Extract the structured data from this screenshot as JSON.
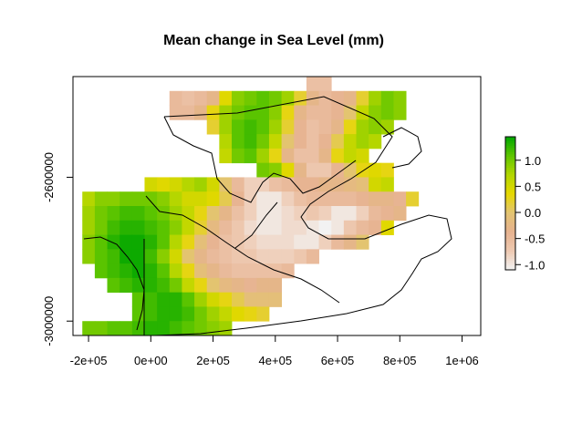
{
  "chart_data": {
    "type": "heatmap",
    "title": "Mean change in Sea Level (mm)",
    "xlabel": "",
    "ylabel": "",
    "x_ticks": [
      "-2e+05",
      "0e+00",
      "2e+05",
      "4e+05",
      "6e+05",
      "8e+05",
      "1e+06"
    ],
    "x_tick_values": [
      -200000,
      0,
      200000,
      400000,
      600000,
      800000,
      1000000
    ],
    "y_ticks": [
      "-2600000",
      "-3000000"
    ],
    "y_tick_values": [
      -2600000,
      -3000000
    ],
    "xlim": [
      -250000,
      1060000
    ],
    "ylim": [
      -3040000,
      -2320000
    ],
    "colorbar": {
      "ticks": [
        "1.0",
        "0.5",
        "0.0",
        "-0.5",
        "-1.0"
      ],
      "tick_values": [
        1.0,
        0.5,
        0.0,
        -0.5,
        -1.0
      ],
      "range": [
        -1.1,
        1.45
      ],
      "colors": [
        "#f2f2f2",
        "#eec9b1",
        "#e6b28f",
        "#e3c472",
        "#e6d800",
        "#b2d600",
        "#5ec500",
        "#00a600"
      ]
    },
    "grid": false,
    "legend": "right",
    "grid_resolution": 40000,
    "rows": [
      {
        "y": -2340000,
        "x_start": 520000,
        "values": [
          -0.6,
          -0.6
        ]
      },
      {
        "y": -2380000,
        "x_start": 80000,
        "values": [
          -0.5,
          -0.6,
          -0.5,
          -0.3,
          0.4,
          0.9,
          1.0,
          1.1,
          1.0,
          0.8,
          0.2,
          -0.3,
          -0.5,
          -0.4,
          -0.3,
          0.2,
          0.8,
          1.0,
          0.9
        ]
      },
      {
        "y": -2420000,
        "x_start": 80000,
        "values": [
          -0.5,
          -0.5,
          -0.3,
          0.3,
          0.8,
          1.0,
          1.1,
          1.1,
          0.9,
          0.3,
          -0.3,
          -0.5,
          -0.5,
          -0.4,
          0.0,
          0.6,
          0.9,
          1.0,
          0.9
        ]
      },
      {
        "y": -2460000,
        "x_start": 200000,
        "values": [
          0.2,
          0.8,
          1.1,
          1.2,
          1.1,
          0.8,
          0.2,
          -0.4,
          -0.6,
          -0.5,
          -0.3,
          0.3,
          0.8,
          0.9,
          0.8
        ]
      },
      {
        "y": -2500000,
        "x_start": 240000,
        "values": [
          0.7,
          1.1,
          1.2,
          1.0,
          0.6,
          0.0,
          -0.4,
          -0.6,
          -0.4,
          0.1,
          0.6,
          0.8,
          0.7
        ]
      },
      {
        "y": -2540000,
        "x_start": 240000,
        "values": [
          0.6,
          1.0,
          1.1,
          0.8,
          0.3,
          -0.3,
          -0.6,
          -0.6,
          -0.3,
          0.3,
          0.6,
          0.5
        ]
      },
      {
        "y": -2580000,
        "x_start": 360000,
        "values": [
          1.0,
          0.9,
          0.4,
          -0.3,
          -0.7,
          -0.7,
          -0.4,
          0.0,
          0.3,
          0.4,
          0.3
        ]
      },
      {
        "y": -2620000,
        "x_start": 0,
        "values": [
          0.5,
          0.4,
          0.5,
          0.7,
          0.8,
          0.5,
          0.0,
          -0.5,
          -0.8,
          -0.8,
          -0.6,
          -0.5,
          -0.4,
          -0.4,
          -0.3,
          -0.3,
          -0.2,
          -0.1,
          0.5,
          0.6
        ]
      },
      {
        "y": -2660000,
        "x_start": -200000,
        "values": [
          0.7,
          0.9,
          0.9,
          1.0,
          1.0,
          1.0,
          0.9,
          0.7,
          0.5,
          0.5,
          0.4,
          0.1,
          -0.4,
          -0.8,
          -1.0,
          -1.0,
          -0.8,
          -0.6,
          -0.5,
          -0.5,
          -0.5,
          -0.5,
          -0.4,
          -0.3,
          -0.3,
          -0.4,
          0.2
        ]
      },
      {
        "y": -2700000,
        "x_start": -200000,
        "values": [
          0.8,
          1.0,
          1.1,
          1.2,
          1.2,
          1.1,
          1.0,
          0.8,
          0.6,
          0.3,
          0.0,
          -0.3,
          -0.6,
          -0.8,
          -1.0,
          -1.0,
          -0.9,
          -0.8,
          -0.7,
          -0.8,
          -1.0,
          -1.0,
          -0.8,
          -0.5,
          -0.4,
          -0.3
        ]
      },
      {
        "y": -2740000,
        "x_start": -200000,
        "values": [
          0.8,
          1.0,
          1.2,
          1.3,
          1.3,
          1.2,
          1.1,
          0.9,
          0.6,
          0.2,
          -0.2,
          -0.5,
          -0.7,
          -0.9,
          -1.0,
          -1.0,
          -0.9,
          -0.9,
          -1.0,
          -1.1,
          -1.0,
          -0.7,
          -0.5,
          -0.4,
          0.4
        ]
      },
      {
        "y": -2780000,
        "x_start": -200000,
        "values": [
          0.9,
          1.1,
          1.3,
          1.4,
          1.4,
          1.3,
          1.1,
          0.7,
          0.3,
          -0.1,
          -0.4,
          -0.6,
          -0.7,
          -0.8,
          -0.9,
          -0.9,
          -0.9,
          -1.0,
          -1.0,
          -0.8,
          -0.5,
          -0.3,
          0.0
        ]
      },
      {
        "y": -2820000,
        "x_start": -200000,
        "values": [
          0.9,
          1.1,
          1.2,
          1.4,
          1.4,
          1.2,
          0.9,
          0.5,
          0.0,
          -0.3,
          -0.5,
          -0.6,
          -0.7,
          -0.7,
          -0.8,
          -0.8,
          -0.8,
          -0.7,
          -0.5
        ]
      },
      {
        "y": -2860000,
        "x_start": -160000,
        "values": [
          1.1,
          1.2,
          1.3,
          1.4,
          1.3,
          1.1,
          0.7,
          0.3,
          -0.1,
          -0.3,
          -0.5,
          -0.6,
          -0.6,
          -0.6,
          -0.6,
          -0.5
        ]
      },
      {
        "y": -2900000,
        "x_start": -120000,
        "values": [
          1.1,
          1.2,
          1.3,
          1.3,
          1.2,
          1.0,
          0.6,
          0.3,
          0.0,
          -0.2,
          -0.3,
          -0.4,
          -0.3,
          -0.3
        ]
      },
      {
        "y": -2940000,
        "x_start": -40000,
        "values": [
          1.1,
          1.2,
          1.3,
          1.3,
          1.1,
          0.8,
          0.5,
          0.3,
          0.1,
          -0.1,
          -0.1,
          -0.1
        ]
      },
      {
        "y": -2980000,
        "x_start": -40000,
        "values": [
          1.1,
          1.2,
          1.3,
          1.3,
          1.2,
          1.0,
          0.8,
          0.6,
          0.4,
          0.3,
          0.2
        ]
      },
      {
        "y": -3020000,
        "x_start": -200000,
        "values": [
          1.0,
          1.0,
          1.1,
          1.1,
          1.2,
          1.3,
          1.3,
          1.2,
          1.1,
          1.0,
          0.9,
          0.8
        ]
      }
    ]
  }
}
